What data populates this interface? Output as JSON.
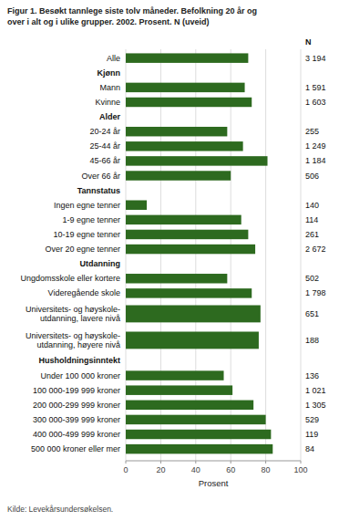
{
  "chart_data": {
    "type": "bar",
    "orientation": "horizontal",
    "title": "Figur 1. Besøkt tannlege siste tolv måneder. Befolkning 20 år og\nover i alt og i ulike grupper. 2002. Prosent. N (uveid)",
    "xlabel": "Prosent",
    "categories": [
      "Alle",
      "Kjønn",
      "Mann",
      "Kvinne",
      "Alder",
      "20-24 år",
      "25-44 år",
      "45-66 år",
      "Over 66 år",
      "Tannstatus",
      "Ingen egne tenner",
      "1-9 egne tenner",
      "10-19 egne tenner",
      "Over 20 egne tenner",
      "Utdanning",
      "Ungdomsskole eller kortere",
      "Videregående skole",
      "Universitets- og høyskole-\nutdanning, lavere nivå",
      "Universitets- og høyskole-\nutdanning, høyere nivå",
      "Husholdningsinntekt",
      "Under 100 000 kroner",
      "100 000-199 999 kroner",
      "200 000-299 999 kroner",
      "300 000-399 999 kroner",
      "400 000-499 999 kroner",
      "500 000 kroner eller mer"
    ],
    "values": [
      70,
      null,
      68,
      72,
      null,
      58,
      67,
      81,
      60,
      null,
      12,
      66,
      70,
      74,
      null,
      58,
      72,
      77,
      76,
      null,
      56,
      61,
      73,
      80,
      83,
      84
    ],
    "n_header": "N",
    "n": [
      "3 194",
      null,
      "1 591",
      "1 603",
      null,
      "255",
      "1 249",
      "1 184",
      "506",
      null,
      "140",
      "114",
      "261",
      "2 672",
      null,
      "502",
      "1 798",
      "651",
      "188",
      null,
      "136",
      "1 021",
      "1 305",
      "529",
      "119",
      "84"
    ],
    "color": "#2d6a1f",
    "xlim": [
      0,
      100
    ],
    "xticks": [
      0,
      20,
      40,
      60,
      80,
      100
    ],
    "grid": true,
    "source": "Kilde: Levekårsundersøkelsen."
  }
}
